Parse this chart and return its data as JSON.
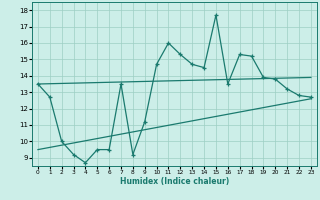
{
  "xlabel": "Humidex (Indice chaleur)",
  "x_data": [
    0,
    1,
    2,
    3,
    4,
    5,
    6,
    7,
    8,
    9,
    10,
    11,
    12,
    13,
    14,
    15,
    16,
    17,
    18,
    19,
    20,
    21,
    22,
    23
  ],
  "y_main": [
    13.5,
    12.7,
    10.0,
    9.2,
    8.7,
    9.5,
    9.5,
    13.5,
    9.2,
    11.2,
    14.7,
    16.0,
    15.3,
    14.7,
    14.5,
    17.7,
    13.5,
    15.3,
    15.2,
    13.9,
    13.8,
    13.2,
    12.8,
    12.7
  ],
  "upper_start": 13.5,
  "upper_end": 13.9,
  "lower_start": 9.5,
  "lower_end": 12.6,
  "main_color": "#1a7a6e",
  "bg_color": "#cceee8",
  "grid_color": "#9ecfc4",
  "ylim": [
    8.5,
    18.5
  ],
  "xlim": [
    -0.5,
    23.5
  ],
  "yticks": [
    9,
    10,
    11,
    12,
    13,
    14,
    15,
    16,
    17,
    18
  ],
  "xticks": [
    0,
    1,
    2,
    3,
    4,
    5,
    6,
    7,
    8,
    9,
    10,
    11,
    12,
    13,
    14,
    15,
    16,
    17,
    18,
    19,
    20,
    21,
    22,
    23
  ]
}
